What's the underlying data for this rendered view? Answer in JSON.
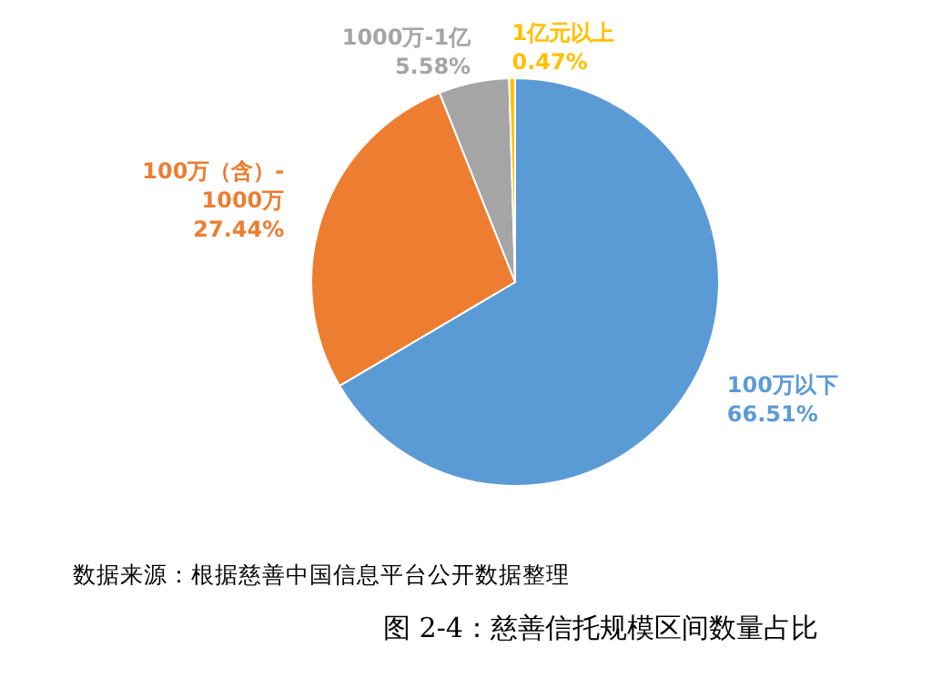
{
  "chart_data": {
    "type": "pie",
    "title": "图 2-4：慈善信托规模区间数量占比",
    "categories": [
      "100万以下",
      "100万（含）-1000万",
      "1000万-1亿",
      "1亿元以上"
    ],
    "values": [
      66.51,
      27.44,
      5.58,
      0.47
    ],
    "value_labels": [
      "66.51%",
      "27.44%",
      "5.58%",
      "0.47%"
    ],
    "colors": [
      "#5b9bd5",
      "#ed7d31",
      "#a5a5a5",
      "#ffc000"
    ],
    "annotations": [
      "数据来源：根据慈善中国信息平台公开数据整理"
    ]
  }
}
